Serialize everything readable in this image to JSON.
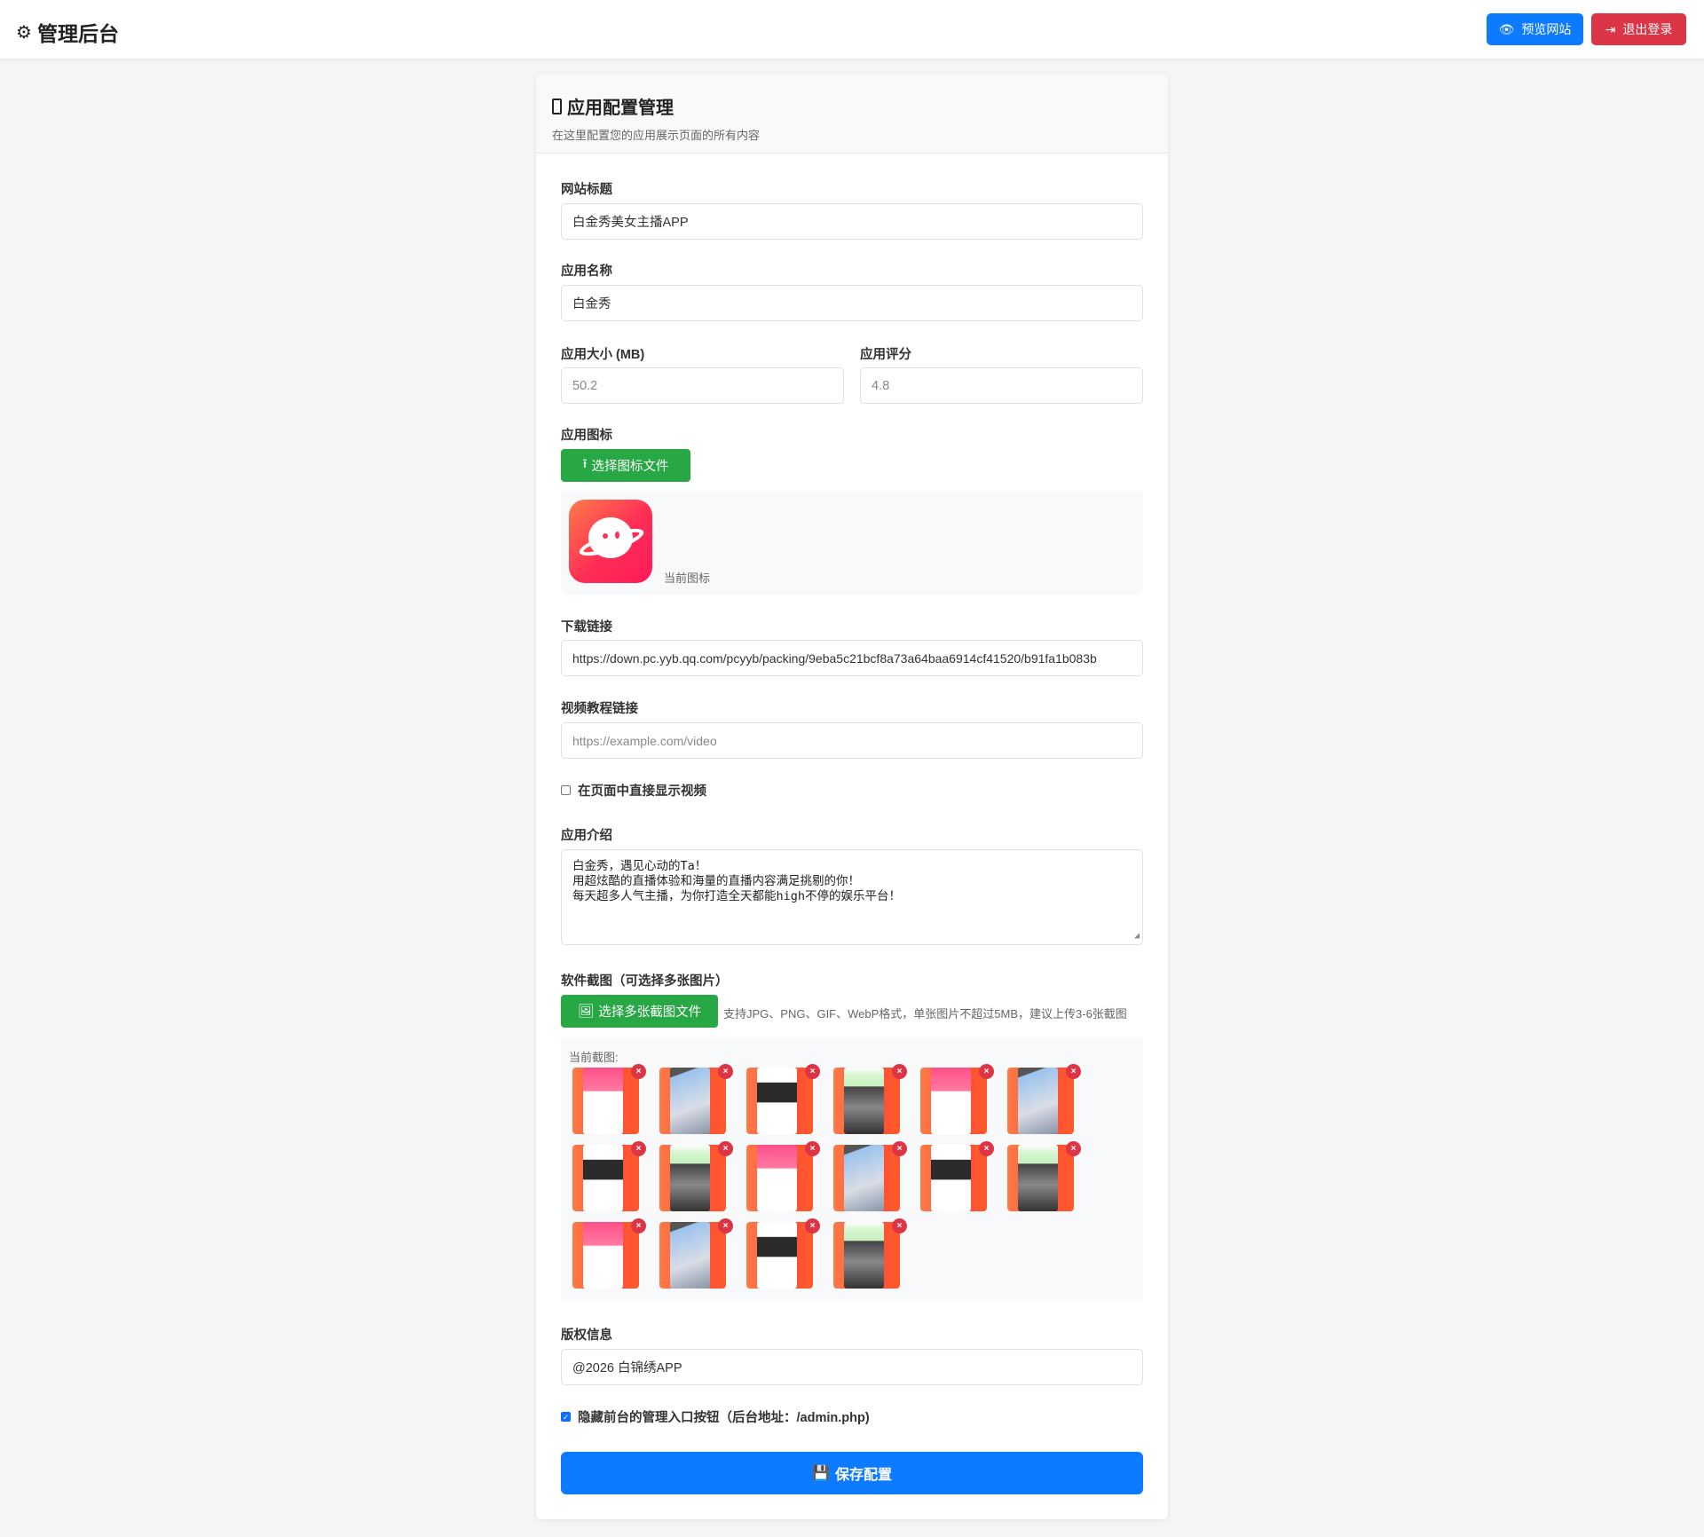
{
  "nav": {
    "title": "管理后台",
    "preview_label": "预览网站",
    "logout_label": "退出登录",
    "preview_color": "#0d7bff",
    "logout_color": "#dc3545"
  },
  "card": {
    "title": "应用配置管理",
    "subtitle": "在这里配置您的应用展示页面的所有内容"
  },
  "form": {
    "site_title": {
      "label": "网站标题",
      "value": "白金秀美女主播APP"
    },
    "app_name": {
      "label": "应用名称",
      "value": "白金秀"
    },
    "app_size": {
      "label": "应用大小 (MB)",
      "placeholder": "50.2"
    },
    "app_rating": {
      "label": "应用评分",
      "placeholder": "4.8"
    },
    "app_icon": {
      "label": "应用图标",
      "button": "选择图标文件",
      "current_label": "当前图标"
    },
    "download": {
      "label": "下载链接",
      "value": "https://down.pc.yyb.qq.com/pcyyb/packing/9eba5c21bcf8a73a64baa6914cf41520/b91fa1b083b"
    },
    "video": {
      "label": "视频教程链接",
      "placeholder": "https://example.com/video"
    },
    "show_video": {
      "label": "在页面中直接显示视频",
      "checked": false
    },
    "intro": {
      "label": "应用介绍",
      "lines": [
        "白金秀，遇见心动的Ta！",
        "用超炫酷的直播体验和海量的直播内容满足挑剔的你！",
        "每天超多人气主播，为你打造全天都能high不停的娱乐平台！"
      ]
    },
    "screenshots": {
      "label": "软件截图（可选择多张图片）",
      "button": "选择多张截图文件",
      "hint": "支持JPG、PNG、GIF、WebP格式，单张图片不超过5MB，建议上传3-6张截图",
      "current_label": "当前截图:",
      "remove_label": "×",
      "items": [
        "pink-list",
        "sky",
        "dark-banner",
        "girls",
        "pink-list",
        "sky",
        "dark-banner",
        "girls",
        "pink-list",
        "sky",
        "dark-banner",
        "girls",
        "pink-list",
        "sky",
        "dark-banner",
        "girls"
      ]
    },
    "copyright": {
      "label": "版权信息",
      "value": "@2026 白锦绣APP"
    },
    "hide_admin": {
      "label": "隐藏前台的管理入口按钮（后台地址：/admin.php)",
      "checked": true
    },
    "save_label": "保存配置"
  }
}
